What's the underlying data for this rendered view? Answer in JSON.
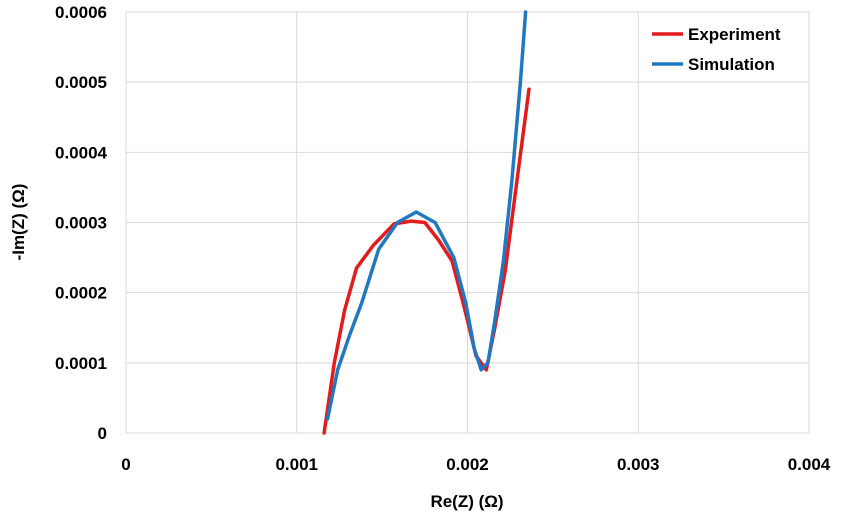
{
  "chart_data": {
    "type": "line",
    "title": "",
    "xlabel": "Re(Z) (Ω)",
    "ylabel": "-Im(Z) (Ω)",
    "xlim": [
      0,
      0.004
    ],
    "ylim": [
      0,
      0.0006
    ],
    "x_ticks": [
      "0",
      "0.001",
      "0.002",
      "0.003",
      "0.004"
    ],
    "y_ticks": [
      "0",
      "0.0001",
      "0.0002",
      "0.0003",
      "0.0004",
      "0.0005",
      "0.0006"
    ],
    "grid": true,
    "legend": "top-right",
    "series": [
      {
        "name": "Experiment",
        "color": "#e41a1c",
        "x": [
          0.00116,
          0.00122,
          0.00128,
          0.00135,
          0.00145,
          0.00157,
          0.00167,
          0.00175,
          0.00183,
          0.00191,
          0.00198,
          0.00205,
          0.00211,
          0.00216,
          0.00222,
          0.00229,
          0.00236
        ],
        "y": [
          0.0,
          0.0001,
          0.000175,
          0.000235,
          0.000268,
          0.000298,
          0.000302,
          0.0003,
          0.000275,
          0.000245,
          0.00018,
          0.00011,
          9e-05,
          0.00015,
          0.00023,
          0.00036,
          0.00049
        ]
      },
      {
        "name": "Simulation",
        "color": "#1f78c1",
        "x": [
          0.00118,
          0.00124,
          0.00131,
          0.00138,
          0.00148,
          0.00159,
          0.0017,
          0.00181,
          0.00192,
          0.00199,
          0.00204,
          0.00208,
          0.00212,
          0.00216,
          0.00221,
          0.00226,
          0.00231,
          0.00234
        ],
        "y": [
          2e-05,
          9e-05,
          0.00014,
          0.000185,
          0.000262,
          0.0003,
          0.000315,
          0.0003,
          0.00025,
          0.000185,
          0.00012,
          9e-05,
          0.0001,
          0.00016,
          0.000245,
          0.00036,
          0.0005,
          0.0006
        ]
      }
    ]
  }
}
